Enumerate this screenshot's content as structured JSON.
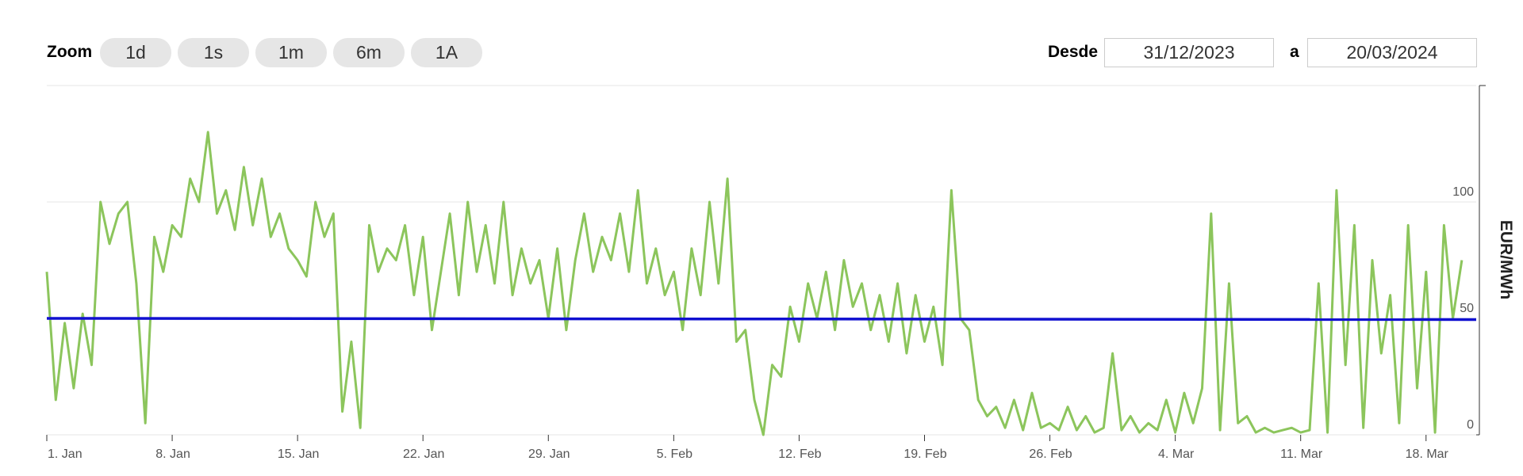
{
  "ui": {
    "zoom_label": "Zoom",
    "zoom_buttons": [
      "1d",
      "1s",
      "1m",
      "6m",
      "1A"
    ],
    "from_label": "Desde",
    "from": "31/12/2023",
    "to_label": "a",
    "to": "20/03/2024"
  },
  "chart_data": {
    "type": "line",
    "y_axis_label": "EUR/MWh",
    "xlim": [
      0,
      79.8
    ],
    "ylim": [
      0,
      150
    ],
    "yticks": [
      0,
      50,
      100
    ],
    "grid": true,
    "xticks": [
      {
        "value": 0,
        "label": "1. Jan"
      },
      {
        "value": 7,
        "label": "8. Jan"
      },
      {
        "value": 14,
        "label": "15. Jan"
      },
      {
        "value": 21,
        "label": "22. Jan"
      },
      {
        "value": 28,
        "label": "29. Jan"
      },
      {
        "value": 35,
        "label": "5. Feb"
      },
      {
        "value": 42,
        "label": "12. Feb"
      },
      {
        "value": 49,
        "label": "19. Feb"
      },
      {
        "value": 56,
        "label": "26. Feb"
      },
      {
        "value": 63,
        "label": "4. Mar"
      },
      {
        "value": 70,
        "label": "11. Mar"
      },
      {
        "value": 77,
        "label": "18. Mar"
      }
    ],
    "series": [
      {
        "color": "#8cc55c",
        "x": [
          0,
          0.5,
          1,
          1.5,
          2,
          2.5,
          3,
          3.5,
          4,
          4.5,
          5,
          5.5,
          6,
          6.5,
          7,
          7.5,
          8,
          8.5,
          9,
          9.5,
          10,
          10.5,
          11,
          11.5,
          12,
          12.5,
          13,
          13.5,
          14,
          14.5,
          15,
          15.5,
          16,
          16.5,
          17,
          17.5,
          18,
          18.5,
          19,
          19.5,
          20,
          20.5,
          21,
          21.5,
          22,
          22.5,
          23,
          23.5,
          24,
          24.5,
          25,
          25.5,
          26,
          26.5,
          27,
          27.5,
          28,
          28.5,
          29,
          29.5,
          30,
          30.5,
          31,
          31.5,
          32,
          32.5,
          33,
          33.5,
          34,
          34.5,
          35,
          35.5,
          36,
          36.5,
          37,
          37.5,
          38,
          38.5,
          39,
          39.5,
          40,
          40.5,
          41,
          41.5,
          42,
          42.5,
          43,
          43.5,
          44,
          44.5,
          45,
          45.5,
          46,
          46.5,
          47,
          47.5,
          48,
          48.5,
          49,
          49.5,
          50,
          50.5,
          51,
          51.5,
          52,
          52.5,
          53,
          53.5,
          54,
          54.5,
          55,
          55.5,
          56,
          56.5,
          57,
          57.5,
          58,
          58.5,
          59,
          59.5,
          60,
          60.5,
          61,
          61.5,
          62,
          62.5,
          63,
          63.5,
          64,
          64.5,
          65,
          65.5,
          66,
          66.5,
          67,
          67.5,
          68,
          68.5,
          69,
          69.5,
          70,
          70.5,
          71,
          71.5,
          72,
          72.5,
          73,
          73.5,
          74,
          74.5,
          75,
          75.5,
          76,
          76.5,
          77,
          77.5,
          78,
          78.5,
          79
        ],
        "values": [
          70,
          15,
          48,
          20,
          52,
          30,
          100,
          82,
          95,
          100,
          65,
          5,
          85,
          70,
          90,
          85,
          110,
          100,
          130,
          95,
          105,
          88,
          115,
          90,
          110,
          85,
          95,
          80,
          75,
          68,
          100,
          85,
          95,
          10,
          40,
          3,
          90,
          70,
          80,
          75,
          90,
          60,
          85,
          45,
          70,
          95,
          60,
          100,
          70,
          90,
          65,
          100,
          60,
          80,
          65,
          75,
          50,
          80,
          45,
          75,
          95,
          70,
          85,
          75,
          95,
          70,
          105,
          65,
          80,
          60,
          70,
          45,
          80,
          60,
          100,
          65,
          110,
          40,
          45,
          15,
          0,
          30,
          25,
          55,
          40,
          65,
          50,
          70,
          45,
          75,
          55,
          65,
          45,
          60,
          40,
          65,
          35,
          60,
          40,
          55,
          30,
          105,
          50,
          45,
          15,
          8,
          12,
          3,
          15,
          2,
          18,
          3,
          5,
          2,
          12,
          2,
          8,
          1,
          3,
          35,
          2,
          8,
          1,
          5,
          2,
          15,
          1,
          18,
          5,
          20,
          95,
          2,
          65,
          5,
          8,
          1,
          3,
          1,
          2,
          3,
          1,
          2,
          65,
          1,
          105,
          30,
          90,
          3,
          75,
          35,
          60,
          5,
          90,
          20,
          70,
          1,
          90,
          50,
          75
        ]
      },
      {
        "color": "#1010d0",
        "x": [
          0,
          79.8
        ],
        "values": [
          50,
          49.5
        ]
      }
    ]
  }
}
